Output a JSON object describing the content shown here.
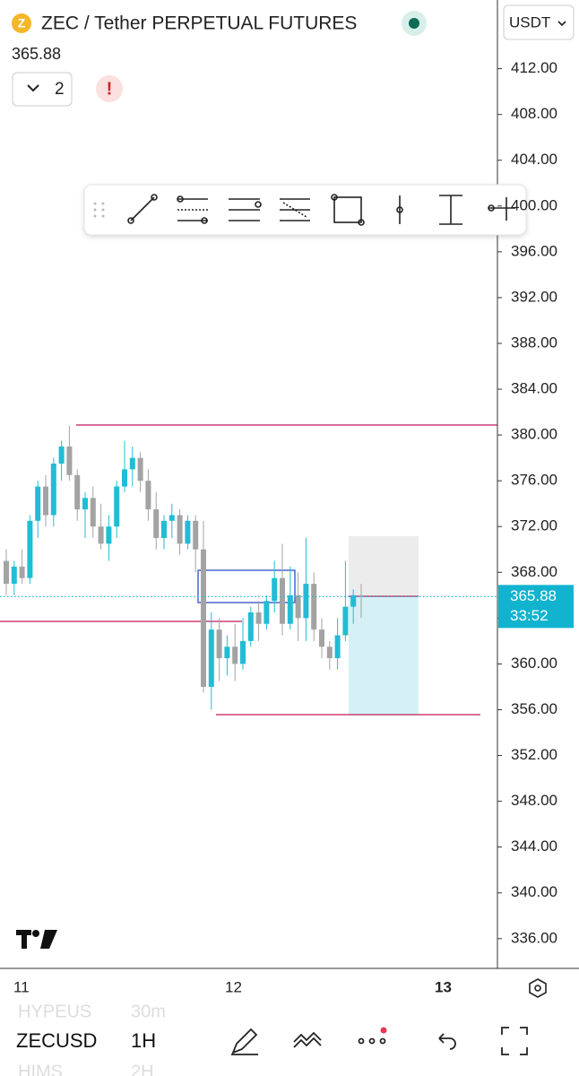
{
  "header": {
    "title": "ZEC / Tether PERPETUAL FUTURES",
    "indicator_count": "2",
    "currency": "USDT"
  },
  "chart_data": {
    "type": "candlestick",
    "open": [
      369,
      367,
      368.5,
      367.5,
      372.5,
      375.5,
      373,
      377.5,
      379,
      376.5,
      373.5,
      374.5,
      372,
      370.5,
      372,
      375.5,
      377,
      378,
      376,
      373.5,
      371,
      372.5,
      373,
      370.5,
      372.5,
      370,
      358,
      363,
      360.5,
      361.5,
      360,
      362,
      364.5,
      363.5,
      365.5,
      367.5,
      363.5,
      366,
      364,
      367,
      363,
      361.5,
      360.5,
      362.5,
      365,
      366
    ],
    "high": [
      370,
      369,
      370,
      373,
      376,
      376.5,
      378,
      379.5,
      380.8,
      377,
      375,
      375.5,
      374,
      373,
      376,
      379.5,
      379,
      378.5,
      377,
      375,
      373,
      374,
      373.5,
      373,
      373,
      372.5,
      364.5,
      364,
      362.5,
      363.5,
      364,
      365,
      365.5,
      366,
      369,
      370.5,
      368.5,
      368,
      371,
      368,
      364,
      362,
      364,
      369,
      366.5,
      367
    ],
    "low": [
      366,
      366,
      367,
      367,
      371,
      372,
      372,
      376,
      376,
      372.5,
      371,
      371,
      370,
      369,
      371,
      375,
      375.5,
      375,
      372.5,
      370,
      370,
      371,
      369.5,
      370,
      368,
      357.5,
      356,
      358.5,
      359,
      358.5,
      359.5,
      361.5,
      362,
      363,
      364.5,
      362.5,
      363,
      362,
      362,
      362,
      360.5,
      359.5,
      359.5,
      362,
      363.5,
      364
    ],
    "close": [
      367,
      368.5,
      367.5,
      372.5,
      375.5,
      373,
      377.5,
      379,
      376.5,
      373.5,
      374.5,
      372,
      370.5,
      372,
      375.5,
      377,
      378,
      376,
      373.5,
      371,
      372.5,
      373,
      370.5,
      372.5,
      370,
      358,
      363,
      360.5,
      361.5,
      360,
      362,
      364.5,
      363.5,
      365.5,
      367.5,
      363.5,
      366,
      364,
      367,
      363,
      361.5,
      360.5,
      362.5,
      365,
      366,
      365.88
    ],
    "up_color": "#22bcd6",
    "down_color": "#a3a3a3",
    "ylim": [
      333.4,
      418.0
    ],
    "yticks": [
      {
        "value": 412,
        "label": "412.00"
      },
      {
        "value": 408,
        "label": "408.00"
      },
      {
        "value": 404,
        "label": "404.00"
      },
      {
        "value": 400,
        "label": "400.00"
      },
      {
        "value": 396,
        "label": "396.00"
      },
      {
        "value": 392,
        "label": "392.00"
      },
      {
        "value": 388,
        "label": "388.00"
      },
      {
        "value": 384,
        "label": "384.00"
      },
      {
        "value": 380,
        "label": "380.00"
      },
      {
        "value": 376,
        "label": "376.00"
      },
      {
        "value": 372,
        "label": "372.00"
      },
      {
        "value": 368,
        "label": "368.00"
      },
      {
        "value": 364,
        "label": "364.00"
      },
      {
        "value": 360,
        "label": "360.00"
      },
      {
        "value": 356,
        "label": "356.00"
      },
      {
        "value": 352,
        "label": "352.00"
      },
      {
        "value": 348,
        "label": "348.00"
      },
      {
        "value": 344,
        "label": "344.00"
      },
      {
        "value": 340,
        "label": "340.00"
      },
      {
        "value": 336,
        "label": "336.00"
      }
    ],
    "last_price": 365.88,
    "countdown": "33:52",
    "x_labels": [
      "11",
      "12",
      "13"
    ]
  },
  "bottom_bar": {
    "symbol": "ZECUSD",
    "interval": "1H",
    "prev_symbol": "HYPEUS",
    "prev_interval": "30m",
    "next_symbol": "HIMS",
    "next_interval": "2H"
  }
}
